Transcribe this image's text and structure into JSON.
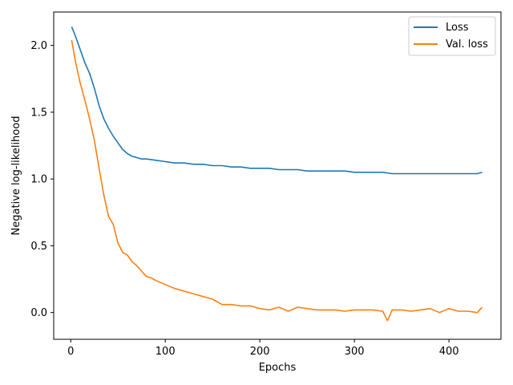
{
  "chart_data": {
    "type": "line",
    "title": "",
    "xlabel": "Epochs",
    "ylabel": "Negative log-likelihood",
    "xlim": [
      -18,
      455
    ],
    "ylim": [
      -0.2,
      2.25
    ],
    "x_ticks": [
      0,
      100,
      200,
      300,
      400
    ],
    "y_ticks": [
      0.0,
      0.5,
      1.0,
      1.5,
      2.0
    ],
    "x_tick_labels": [
      "0",
      "100",
      "200",
      "300",
      "400"
    ],
    "y_tick_labels": [
      "0.0",
      "0.5",
      "1.0",
      "1.5",
      "2.0"
    ],
    "grid": false,
    "legend_position": "upper right",
    "series": [
      {
        "name": "Loss",
        "color": "#1f77b4",
        "x": [
          1,
          5,
          10,
          15,
          20,
          25,
          30,
          35,
          40,
          45,
          50,
          55,
          60,
          65,
          70,
          75,
          80,
          90,
          100,
          110,
          120,
          130,
          140,
          150,
          160,
          170,
          180,
          190,
          200,
          210,
          220,
          230,
          240,
          250,
          260,
          270,
          280,
          290,
          300,
          310,
          320,
          330,
          340,
          350,
          360,
          370,
          380,
          390,
          400,
          410,
          420,
          430,
          435
        ],
        "y": [
          2.14,
          2.07,
          1.97,
          1.87,
          1.79,
          1.68,
          1.55,
          1.45,
          1.38,
          1.32,
          1.27,
          1.22,
          1.19,
          1.17,
          1.16,
          1.15,
          1.15,
          1.14,
          1.13,
          1.12,
          1.12,
          1.11,
          1.11,
          1.1,
          1.1,
          1.09,
          1.09,
          1.08,
          1.08,
          1.08,
          1.07,
          1.07,
          1.07,
          1.06,
          1.06,
          1.06,
          1.06,
          1.06,
          1.05,
          1.05,
          1.05,
          1.05,
          1.04,
          1.04,
          1.04,
          1.04,
          1.04,
          1.04,
          1.04,
          1.04,
          1.04,
          1.04,
          1.05
        ]
      },
      {
        "name": "Val. loss",
        "color": "#ff7f0e",
        "x": [
          1,
          5,
          10,
          15,
          20,
          25,
          30,
          35,
          40,
          45,
          50,
          55,
          60,
          65,
          70,
          75,
          80,
          85,
          90,
          100,
          110,
          120,
          130,
          140,
          150,
          160,
          170,
          180,
          190,
          200,
          210,
          220,
          230,
          240,
          250,
          260,
          270,
          280,
          290,
          300,
          310,
          320,
          330,
          335,
          340,
          350,
          360,
          370,
          380,
          390,
          400,
          410,
          420,
          430,
          435
        ],
        "y": [
          2.04,
          1.88,
          1.72,
          1.59,
          1.45,
          1.29,
          1.08,
          0.88,
          0.72,
          0.66,
          0.52,
          0.45,
          0.43,
          0.38,
          0.35,
          0.31,
          0.27,
          0.26,
          0.24,
          0.21,
          0.18,
          0.16,
          0.14,
          0.12,
          0.1,
          0.06,
          0.06,
          0.05,
          0.05,
          0.03,
          0.02,
          0.04,
          0.01,
          0.04,
          0.03,
          0.02,
          0.02,
          0.02,
          0.01,
          0.02,
          0.02,
          0.02,
          0.01,
          -0.06,
          0.02,
          0.02,
          0.01,
          0.02,
          0.03,
          0.0,
          0.03,
          0.01,
          0.01,
          0.0,
          0.04
        ]
      }
    ]
  }
}
